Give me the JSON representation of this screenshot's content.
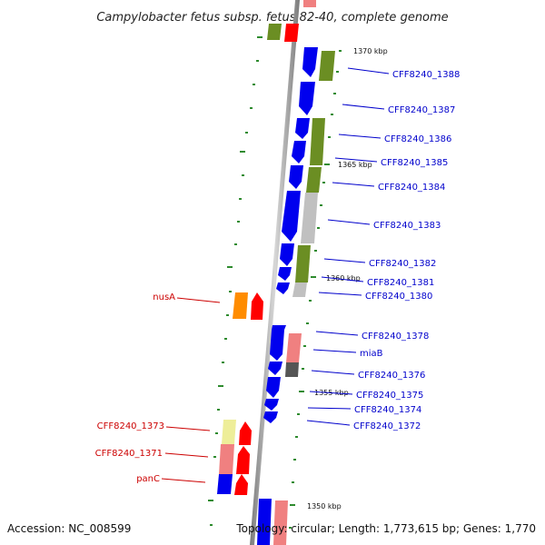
{
  "title": "Campylobacter fetus subsp. fetus 82-40, complete genome",
  "accession": "Accession: NC_008599",
  "topology": "Topology: circular; Length: 1,773,615 bp; Genes: 1,770",
  "kbp_markers": {
    "m1370": "1370 kbp",
    "m1365": "1365 kbp",
    "m1360": "1360 kbp",
    "m1355": "1355 kbp",
    "m1350": "1350 kbp"
  },
  "labels_right": {
    "g1388": "CFF8240_1388",
    "g1387": "CFF8240_1387",
    "g1386": "CFF8240_1386",
    "g1385": "CFF8240_1385",
    "g1384": "CFF8240_1384",
    "g1383": "CFF8240_1383",
    "g1382": "CFF8240_1382",
    "g1381": "CFF8240_1381",
    "g1380": "CFF8240_1380",
    "g1378": "CFF8240_1378",
    "miaB": "miaB",
    "g1376": "CFF8240_1376",
    "g1375": "CFF8240_1375",
    "g1374": "CFF8240_1374",
    "g1372": "CFF8240_1372"
  },
  "labels_left": {
    "nusA": "nusA",
    "g1373": "CFF8240_1373",
    "g1371": "CFF8240_1371",
    "panC": "panC"
  },
  "colors": {
    "blue": "#0000ee",
    "green": "#6b8e23",
    "red": "#ff0000",
    "orange": "#ff8c00",
    "pink": "#f08080",
    "light_yellow": "#eeee99",
    "gray": "#c0c0c0",
    "dark_gray": "#555555",
    "label_blue": "#0000cc",
    "label_red": "#cc0000",
    "tick_green": "#2e8b2e"
  }
}
